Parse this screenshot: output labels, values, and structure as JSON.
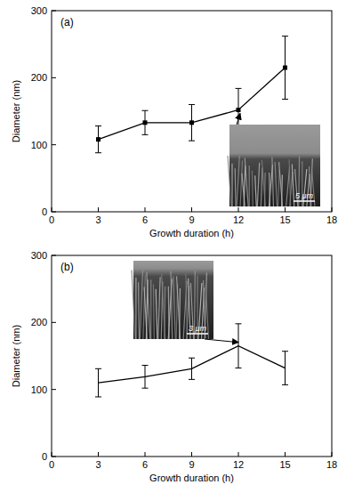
{
  "chart_data": [
    {
      "type": "line",
      "title": "(a)",
      "x_label": "Growth duration (h)",
      "y_label": "Diameter (nm)",
      "x": [
        3,
        6,
        9,
        12,
        15
      ],
      "values": [
        108,
        133,
        133,
        152,
        215
      ],
      "errors": [
        20,
        18,
        27,
        32,
        47
      ],
      "color": "#000000",
      "marker": "square",
      "line_style": "solid",
      "xlim": [
        0,
        18
      ],
      "xticks": [
        0,
        3,
        6,
        9,
        12,
        15,
        18
      ],
      "ylim": [
        0,
        300
      ],
      "yticks": [
        0,
        100,
        200,
        300
      ],
      "grid": false,
      "annotations": [
        "5 μm"
      ]
    },
    {
      "type": "line",
      "title": "(b)",
      "x_label": "Growth duration (h)",
      "y_label": "Diameter (nm)",
      "x": [
        3,
        6,
        9,
        12,
        15
      ],
      "values": [
        110,
        119,
        131,
        165,
        132
      ],
      "errors": [
        21,
        17,
        16,
        33,
        25
      ],
      "color": "#000000",
      "marker": "none",
      "line_style": "solid",
      "xlim": [
        0,
        18
      ],
      "xticks": [
        0,
        3,
        6,
        9,
        12,
        15,
        18
      ],
      "ylim": [
        0,
        300
      ],
      "yticks": [
        0,
        100,
        200,
        300
      ],
      "grid": false,
      "annotations": [
        "3 μm"
      ]
    }
  ]
}
